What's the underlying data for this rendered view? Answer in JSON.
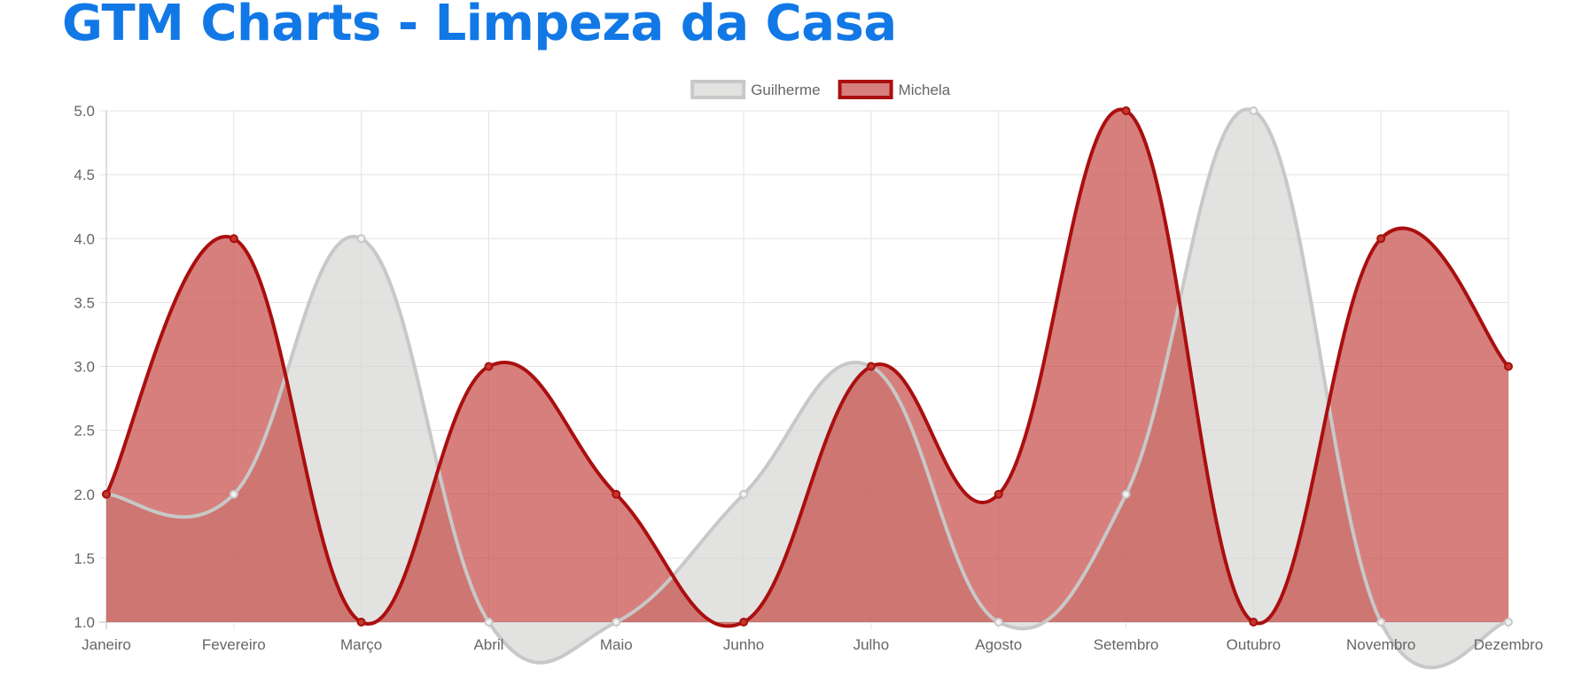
{
  "page": {
    "title": "GTM Charts - Limpeza da Casa"
  },
  "chart_data": {
    "type": "area",
    "categories": [
      "Janeiro",
      "Fevereiro",
      "Março",
      "Abril",
      "Maio",
      "Junho",
      "Julho",
      "Agosto",
      "Setembro",
      "Outubro",
      "Novembro",
      "Dezembro"
    ],
    "series": [
      {
        "name": "Guilherme",
        "values": [
          2,
          2,
          4,
          1,
          1,
          2,
          3,
          1,
          2,
          5,
          1,
          1
        ],
        "line_color": "#c8c8c8",
        "fill_color": "rgba(214,214,212,0.7)"
      },
      {
        "name": "Michela",
        "values": [
          2,
          4,
          1,
          3,
          2,
          1,
          3,
          2,
          5,
          1,
          4,
          3
        ],
        "line_color": "#aa0f0f",
        "fill_color": "rgba(196,66,62,0.68)"
      }
    ],
    "y_ticks": [
      "1.0",
      "1.5",
      "2.0",
      "2.5",
      "3.0",
      "3.5",
      "4.0",
      "4.5",
      "5.0"
    ],
    "ylim": [
      1,
      5
    ],
    "grid": true,
    "legend_position": "top-center",
    "smooth": true
  }
}
